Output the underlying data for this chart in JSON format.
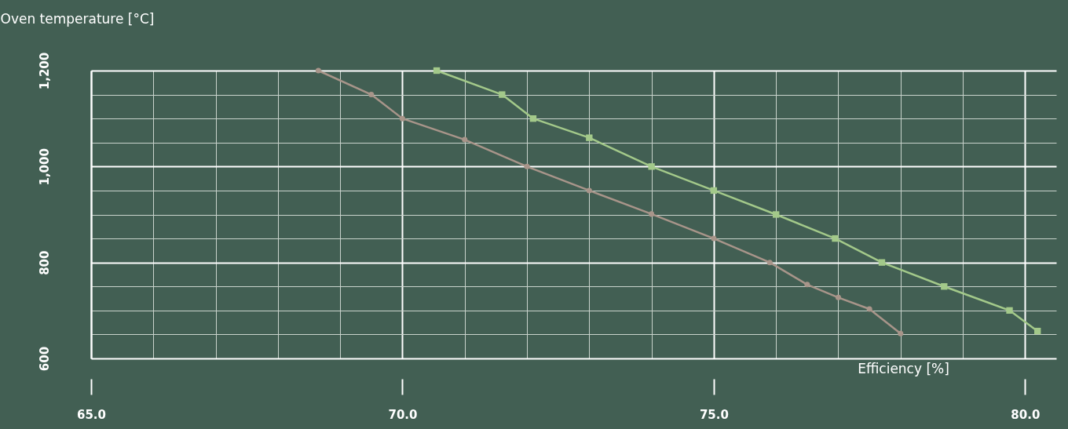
{
  "chart_data": {
    "type": "line",
    "xlabel": "Efficiency [%]",
    "ylabel": "Oven temperature [°C]",
    "xlim": [
      65,
      80.5
    ],
    "xticks": [
      {
        "value": 65,
        "label": "65.0"
      },
      {
        "value": 70,
        "label": "70.0"
      },
      {
        "value": 75,
        "label": "75.0"
      },
      {
        "value": 80,
        "label": "80.0"
      }
    ],
    "ylim": [
      600,
      1200
    ],
    "yticks": [
      {
        "value": 600,
        "label": "600"
      },
      {
        "value": 800,
        "label": "800"
      },
      {
        "value": 1000,
        "label": "1,000"
      },
      {
        "value": 1200,
        "label": "1,200"
      }
    ],
    "grid": true,
    "series": [
      {
        "color": "#a8958a",
        "marker": "circle",
        "x": [
          68.65,
          69.5,
          70,
          71,
          72,
          73,
          74,
          75,
          75.9,
          76.5,
          77,
          77.5,
          78
        ],
        "values": [
          1200,
          1150,
          1100,
          1056,
          1000,
          950,
          901,
          850,
          800,
          754,
          727,
          703,
          652
        ]
      },
      {
        "color": "#a3c98a",
        "marker": "square",
        "x": [
          70.55,
          71.6,
          72.1,
          73,
          74,
          75,
          76,
          76.95,
          77.7,
          78.7,
          79.75,
          80.2
        ],
        "values": [
          1200,
          1150,
          1100,
          1060,
          1000,
          950,
          900,
          850,
          800,
          750,
          700,
          657
        ]
      }
    ]
  }
}
